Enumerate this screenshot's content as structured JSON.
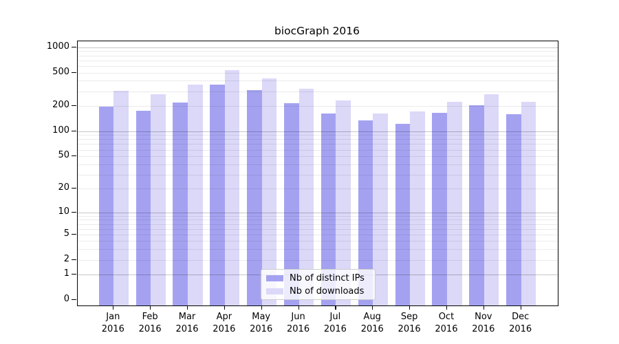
{
  "chart_data": {
    "type": "bar",
    "title": "biocGraph 2016",
    "categories": [
      "Jan 2016",
      "Feb 2016",
      "Mar 2016",
      "Apr 2016",
      "May 2016",
      "Jun 2016",
      "Jul 2016",
      "Aug 2016",
      "Sep 2016",
      "Oct 2016",
      "Nov 2016",
      "Dec 2016"
    ],
    "series": [
      {
        "name": "Nb of distinct IPs",
        "color": "#a4a2f0",
        "values": [
          196,
          175,
          221,
          362,
          312,
          215,
          164,
          135,
          122,
          167,
          203,
          159
        ]
      },
      {
        "name": "Nb of downloads",
        "color": "#dbd8f8",
        "values": [
          303,
          277,
          359,
          531,
          428,
          322,
          233,
          162,
          173,
          223,
          274,
          224
        ]
      }
    ],
    "yscale": "log1p",
    "yticks": [
      0,
      1,
      2,
      5,
      10,
      20,
      50,
      100,
      200,
      500,
      1000
    ],
    "ylim": [
      0,
      1000
    ],
    "grid": "horizontal minor log gridlines, darker lines at 1/10/100/1000, drawn over bars",
    "legend_position": "bottom-center-inside",
    "background_color": "#ffffff",
    "axis_color": "#000000"
  }
}
